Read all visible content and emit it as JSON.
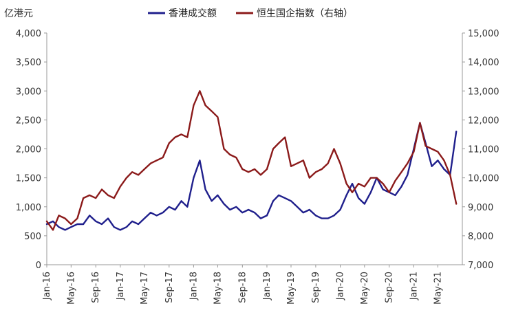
{
  "chart_data": {
    "type": "line",
    "title": "",
    "left_axis_unit": "亿港元",
    "colors": {
      "turnover": "#1f1f8c",
      "index": "#8b1a1a",
      "axis": "#999999"
    },
    "x_ticks": [
      "Jan-16",
      "May-16",
      "Sep-16",
      "Jan-17",
      "May-17",
      "Sep-17",
      "Jan-18",
      "May-18",
      "Sep-18",
      "Jan-19",
      "May-19",
      "Sep-19",
      "Jan-20",
      "May-20",
      "Sep-20",
      "Jan-21",
      "May-21"
    ],
    "y_left": {
      "min": 0,
      "max": 4000,
      "ticks": [
        "0",
        "500",
        "1,000",
        "1,500",
        "2,000",
        "2,500",
        "3,000",
        "3,500",
        "4,000"
      ]
    },
    "y_right": {
      "min": 7000,
      "max": 15000,
      "ticks": [
        "7,000",
        "8,000",
        "9,000",
        "10,000",
        "11,000",
        "12,000",
        "13,000",
        "14,000",
        "15,000"
      ]
    },
    "legend_position": "top",
    "series": [
      {
        "name": "香港成交额",
        "axis": "left",
        "x": [
          "2016-01",
          "2016-02",
          "2016-03",
          "2016-04",
          "2016-05",
          "2016-06",
          "2016-07",
          "2016-08",
          "2016-09",
          "2016-10",
          "2016-11",
          "2016-12",
          "2017-01",
          "2017-02",
          "2017-03",
          "2017-04",
          "2017-05",
          "2017-06",
          "2017-07",
          "2017-08",
          "2017-09",
          "2017-10",
          "2017-11",
          "2017-12",
          "2018-01",
          "2018-02",
          "2018-03",
          "2018-04",
          "2018-05",
          "2018-06",
          "2018-07",
          "2018-08",
          "2018-09",
          "2018-10",
          "2018-11",
          "2018-12",
          "2019-01",
          "2019-02",
          "2019-03",
          "2019-04",
          "2019-05",
          "2019-06",
          "2019-07",
          "2019-08",
          "2019-09",
          "2019-10",
          "2019-11",
          "2019-12",
          "2020-01",
          "2020-02",
          "2020-03",
          "2020-04",
          "2020-05",
          "2020-06",
          "2020-07",
          "2020-08",
          "2020-09",
          "2020-10",
          "2020-11",
          "2020-12",
          "2021-01",
          "2021-02",
          "2021-03",
          "2021-04",
          "2021-05",
          "2021-06",
          "2021-07",
          "2021-08"
        ],
        "values": [
          700,
          750,
          650,
          600,
          650,
          700,
          700,
          850,
          750,
          700,
          800,
          650,
          600,
          650,
          750,
          700,
          800,
          900,
          850,
          900,
          1000,
          950,
          1100,
          1000,
          1500,
          1800,
          1300,
          1100,
          1200,
          1050,
          950,
          1000,
          900,
          950,
          900,
          800,
          850,
          1100,
          1200,
          1150,
          1100,
          1000,
          900,
          950,
          850,
          800,
          800,
          850,
          950,
          1200,
          1400,
          1150,
          1050,
          1250,
          1500,
          1300,
          1250,
          1200,
          1350,
          1550,
          2000,
          2450,
          2100,
          1700,
          1800,
          1650,
          1550,
          2300
        ]
      },
      {
        "name": "恒生国企指数（右轴）",
        "axis": "right",
        "x": [
          "2016-01",
          "2016-02",
          "2016-03",
          "2016-04",
          "2016-05",
          "2016-06",
          "2016-07",
          "2016-08",
          "2016-09",
          "2016-10",
          "2016-11",
          "2016-12",
          "2017-01",
          "2017-02",
          "2017-03",
          "2017-04",
          "2017-05",
          "2017-06",
          "2017-07",
          "2017-08",
          "2017-09",
          "2017-10",
          "2017-11",
          "2017-12",
          "2018-01",
          "2018-02",
          "2018-03",
          "2018-04",
          "2018-05",
          "2018-06",
          "2018-07",
          "2018-08",
          "2018-09",
          "2018-10",
          "2018-11",
          "2018-12",
          "2019-01",
          "2019-02",
          "2019-03",
          "2019-04",
          "2019-05",
          "2019-06",
          "2019-07",
          "2019-08",
          "2019-09",
          "2019-10",
          "2019-11",
          "2019-12",
          "2020-01",
          "2020-02",
          "2020-03",
          "2020-04",
          "2020-05",
          "2020-06",
          "2020-07",
          "2020-08",
          "2020-09",
          "2020-10",
          "2020-11",
          "2020-12",
          "2021-01",
          "2021-02",
          "2021-03",
          "2021-04",
          "2021-05",
          "2021-06",
          "2021-07",
          "2021-08"
        ],
        "values": [
          8500,
          8200,
          8700,
          8600,
          8400,
          8600,
          9300,
          9400,
          9300,
          9600,
          9400,
          9300,
          9700,
          10000,
          10200,
          10100,
          10300,
          10500,
          10600,
          10700,
          11200,
          11400,
          11500,
          11400,
          12500,
          13000,
          12500,
          12300,
          12100,
          11000,
          10800,
          10700,
          10300,
          10200,
          10300,
          10100,
          10300,
          11000,
          11200,
          11400,
          10400,
          10500,
          10600,
          10000,
          10200,
          10300,
          10500,
          11000,
          10500,
          9800,
          9500,
          9800,
          9700,
          10000,
          10000,
          9800,
          9500,
          9900,
          10200,
          10500,
          10900,
          11900,
          11100,
          11000,
          10900,
          10600,
          10100,
          9100
        ]
      }
    ]
  }
}
